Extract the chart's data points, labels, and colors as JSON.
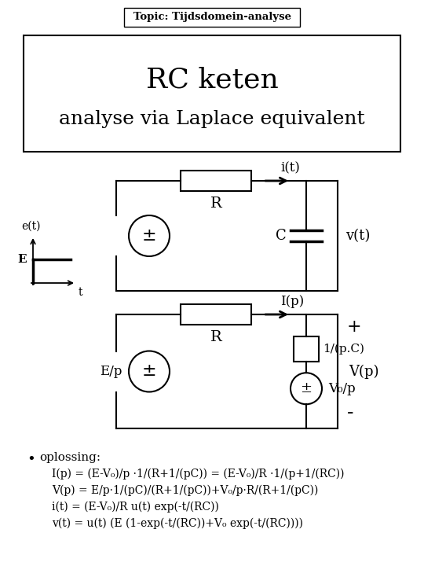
{
  "title_box": "Topic: Tijdsdomein-analyse",
  "main_title_line1": "RC keten",
  "main_title_line2": "analyse via Laplace equivalent",
  "bg_color": "#ffffff",
  "bullet_header": "oplossing:",
  "bullet_lines": [
    "I(p) = (E-V₀)/p ·1/(R+1/(pC)) = (E-V₀)/R ·1/(p+1/(RC))",
    "V(p) = E/p·1/(pC)/(R+1/(pC))+V₀/p·R/(R+1/(pC))",
    "i(t) = (E-V₀)/R u(t) exp(-t/(RC))",
    "v(t) = u(t) (E (1-exp(-t/(RC))+V₀ exp(-t/(RC))))"
  ]
}
